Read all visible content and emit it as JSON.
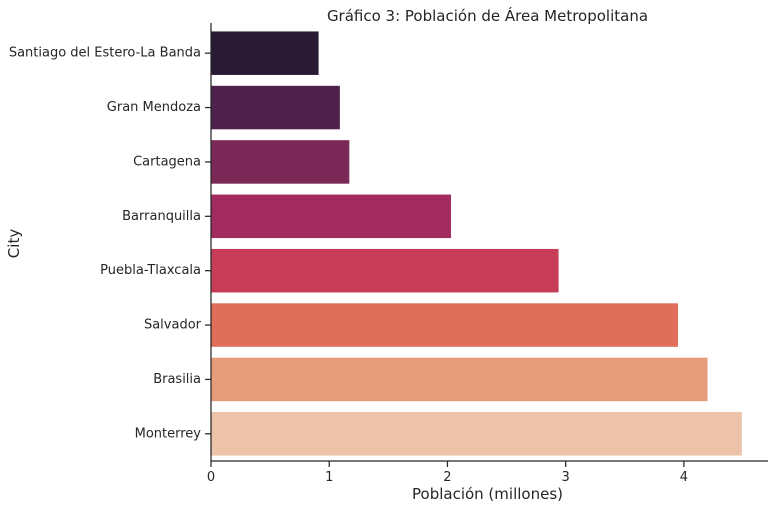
{
  "chart_data": {
    "type": "bar",
    "orientation": "horizontal",
    "title": "Gráfico 3: Población de Área Metropolitana",
    "xlabel": "Población (millones)",
    "ylabel": "City",
    "xlim": [
      0,
      4.7
    ],
    "x_ticks": [
      0,
      1,
      2,
      3,
      4
    ],
    "x_tick_labels": [
      "0",
      "1",
      "2",
      "3",
      "4"
    ],
    "grid": false,
    "legend": "none",
    "categories": [
      "Santiago del Estero-La Banda",
      "Gran Mendoza",
      "Cartagena",
      "Barranquilla",
      "Puebla-Tlaxcala",
      "Salvador",
      "Brasilia",
      "Monterrey"
    ],
    "values": [
      0.91,
      1.09,
      1.17,
      2.03,
      2.94,
      3.95,
      4.2,
      4.49
    ],
    "colors": [
      "#2a1b35",
      "#4d2149",
      "#7a2956",
      "#a12a5e",
      "#c73c57",
      "#df6e5a",
      "#e69c7b",
      "#ecc3a8"
    ]
  }
}
